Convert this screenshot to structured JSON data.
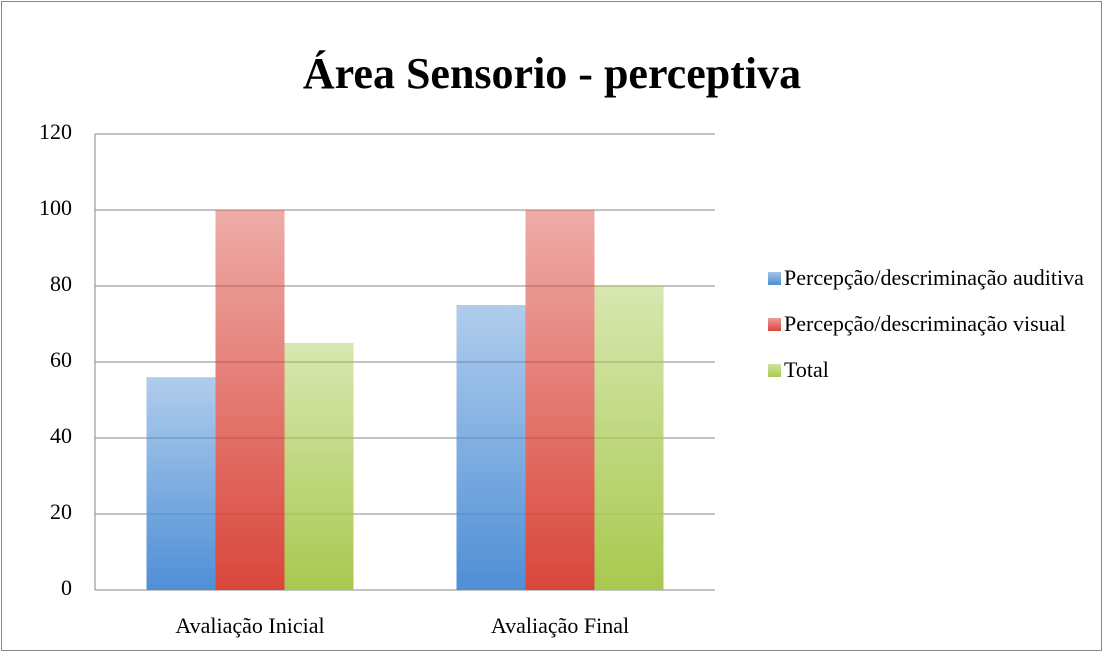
{
  "chart_data": {
    "type": "bar",
    "title": "Área Sensorio - perceptiva",
    "categories": [
      "Avaliação Inicial",
      "Avaliação Final"
    ],
    "series": [
      {
        "name": "Percepção/descriminação auditiva",
        "color": "#4f8fd6",
        "values": [
          56,
          75
        ]
      },
      {
        "name": "Percepção/descriminação visual",
        "color": "#d9463b",
        "values": [
          100,
          100
        ]
      },
      {
        "name": "Total",
        "color": "#a8c94f",
        "values": [
          65,
          80
        ]
      }
    ],
    "ylim": [
      0,
      120
    ],
    "yticks": [
      0,
      20,
      40,
      60,
      80,
      100,
      120
    ],
    "grid": true,
    "legend": "right"
  }
}
